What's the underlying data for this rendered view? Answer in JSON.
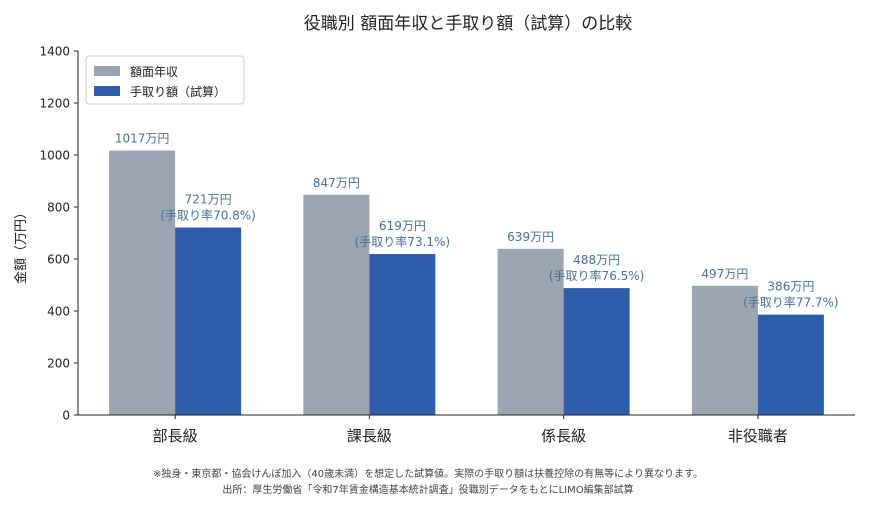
{
  "chart_data": {
    "type": "bar",
    "title": "役職別 額面年収と手取り額（試算）の比較",
    "xlabel": "",
    "ylabel": "金額（万円）",
    "ylim": [
      0,
      1400
    ],
    "yticks": [
      0,
      200,
      400,
      600,
      800,
      1000,
      1200,
      1400
    ],
    "grid": false,
    "legend_position": "top-left",
    "categories": [
      "部長級",
      "課長級",
      "係長級",
      "非役職者"
    ],
    "series": [
      {
        "name": "額面年収",
        "color": "#9aa5b1",
        "values": [
          1017,
          847,
          639,
          497
        ],
        "labels": [
          "1017万円",
          "847万円",
          "639万円",
          "497万円"
        ]
      },
      {
        "name": "手取り額（試算）",
        "color": "#2e5eaa",
        "values": [
          721,
          619,
          488,
          386
        ],
        "labels": [
          "721万円",
          "619万円",
          "488万円",
          "386万円"
        ],
        "rate_labels": [
          "(手取り率70.8%)",
          "(手取り率73.1%)",
          "(手取り率76.5%)",
          "(手取り率77.7%)"
        ]
      }
    ],
    "label_color": "#4a6f9a",
    "footnotes": [
      "※独身・東京都・協会けんぽ加入（40歳未満）を想定した試算値。実際の手取り額は扶養控除の有無等により異なります。",
      "出所：厚生労働省「令和7年賃金構造基本統計調査」役職別データをもとにLIMO編集部試算"
    ]
  }
}
